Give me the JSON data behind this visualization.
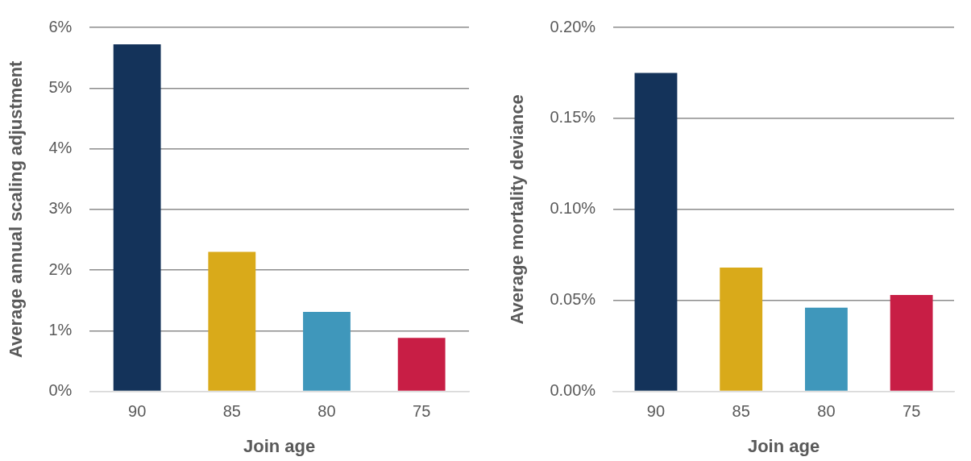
{
  "chart_data": [
    {
      "type": "bar",
      "categories": [
        "90",
        "85",
        "80",
        "75"
      ],
      "values": [
        5.72,
        2.3,
        1.31,
        0.88
      ],
      "colors": [
        "#14335a",
        "#d9aa1a",
        "#3f97bb",
        "#c81e45"
      ],
      "xlabel": "Join age",
      "ylabel": "Average annual scaling adjustment",
      "ylim": [
        0,
        6
      ],
      "yticks": [
        {
          "value": 0,
          "label": "0%"
        },
        {
          "value": 1,
          "label": "1%"
        },
        {
          "value": 2,
          "label": "2%"
        },
        {
          "value": 3,
          "label": "3%"
        },
        {
          "value": 4,
          "label": "4%"
        },
        {
          "value": 5,
          "label": "5%"
        },
        {
          "value": 6,
          "label": "6%"
        }
      ],
      "grid": "y"
    },
    {
      "type": "bar",
      "categories": [
        "90",
        "85",
        "80",
        "75"
      ],
      "values": [
        0.175,
        0.068,
        0.046,
        0.053
      ],
      "colors": [
        "#14335a",
        "#d9aa1a",
        "#3f97bb",
        "#c81e45"
      ],
      "xlabel": "Join age",
      "ylabel": "Average mortality deviance",
      "ylim": [
        0,
        0.2
      ],
      "yticks": [
        {
          "value": 0,
          "label": "0.00%"
        },
        {
          "value": 0.05,
          "label": "0.05%"
        },
        {
          "value": 0.1,
          "label": "0.10%"
        },
        {
          "value": 0.15,
          "label": "0.15%"
        },
        {
          "value": 0.2,
          "label": "0.20%"
        }
      ],
      "grid": "y"
    }
  ]
}
